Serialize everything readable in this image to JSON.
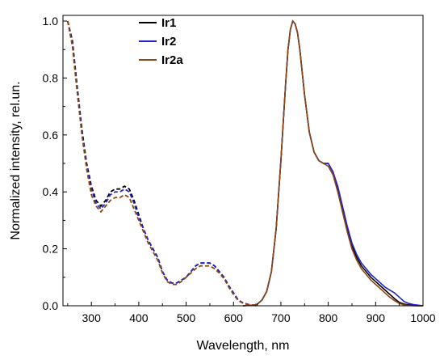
{
  "chart_data": {
    "type": "line",
    "xlabel": "Wavelength, nm",
    "ylabel": "Normalized intensity, rel.un.",
    "xlim": [
      240,
      1000
    ],
    "ylim": [
      0,
      1.02
    ],
    "xticks": [
      300,
      400,
      500,
      600,
      700,
      800,
      900,
      1000
    ],
    "yticks": [
      0.0,
      0.2,
      0.4,
      0.6,
      0.8,
      1.0
    ],
    "xtick_labels": [
      "300",
      "400",
      "500",
      "600",
      "700",
      "800",
      "900",
      "1000"
    ],
    "ytick_labels": [
      "0.0",
      "0.2",
      "0.4",
      "0.6",
      "0.8",
      "1.0"
    ],
    "grid": false,
    "legend_position": "top-left",
    "series": [
      {
        "name": "Ir1",
        "color": "#000000",
        "absorption": {
          "x": [
            250,
            260,
            270,
            280,
            290,
            300,
            310,
            320,
            330,
            340,
            350,
            360,
            370,
            380,
            390,
            400,
            410,
            420,
            430,
            440,
            450,
            460,
            470,
            480,
            490,
            500,
            510,
            520,
            530,
            540,
            550,
            560,
            570,
            580,
            590,
            600,
            610,
            620,
            630,
            640,
            650
          ],
          "y": [
            1.0,
            0.93,
            0.77,
            0.62,
            0.5,
            0.42,
            0.37,
            0.35,
            0.37,
            0.4,
            0.41,
            0.41,
            0.42,
            0.41,
            0.37,
            0.32,
            0.27,
            0.23,
            0.2,
            0.17,
            0.12,
            0.09,
            0.08,
            0.08,
            0.09,
            0.1,
            0.12,
            0.14,
            0.15,
            0.15,
            0.15,
            0.14,
            0.12,
            0.1,
            0.07,
            0.045,
            0.02,
            0.01,
            0.005,
            0.002,
            0.0
          ]
        },
        "emission": {
          "x": [
            620,
            640,
            650,
            660,
            670,
            680,
            690,
            700,
            710,
            715,
            720,
            725,
            730,
            735,
            740,
            745,
            750,
            760,
            770,
            780,
            790,
            800,
            810,
            820,
            830,
            840,
            850,
            860,
            870,
            880,
            890,
            900,
            910,
            920,
            930,
            940,
            950,
            960,
            970,
            980,
            990,
            1000
          ],
          "y": [
            0.0,
            0.002,
            0.005,
            0.02,
            0.05,
            0.12,
            0.27,
            0.51,
            0.78,
            0.9,
            0.97,
            1.0,
            0.99,
            0.96,
            0.9,
            0.82,
            0.74,
            0.61,
            0.54,
            0.51,
            0.5,
            0.5,
            0.47,
            0.41,
            0.34,
            0.27,
            0.21,
            0.17,
            0.14,
            0.12,
            0.1,
            0.085,
            0.07,
            0.055,
            0.04,
            0.025,
            0.012,
            0.006,
            0.003,
            0.001,
            0.0,
            0.0
          ]
        }
      },
      {
        "name": "Ir2",
        "color": "#2222cc",
        "absorption": {
          "x": [
            250,
            260,
            270,
            280,
            290,
            300,
            310,
            320,
            330,
            340,
            350,
            360,
            370,
            380,
            390,
            400,
            410,
            420,
            430,
            440,
            450,
            460,
            470,
            480,
            490,
            500,
            510,
            520,
            530,
            540,
            550,
            560,
            570,
            580,
            590,
            600,
            610,
            620,
            630,
            640,
            650
          ],
          "y": [
            1.0,
            0.92,
            0.76,
            0.61,
            0.49,
            0.41,
            0.36,
            0.34,
            0.36,
            0.39,
            0.4,
            0.4,
            0.41,
            0.4,
            0.36,
            0.31,
            0.27,
            0.23,
            0.2,
            0.17,
            0.12,
            0.09,
            0.08,
            0.08,
            0.09,
            0.1,
            0.12,
            0.14,
            0.15,
            0.15,
            0.15,
            0.14,
            0.12,
            0.1,
            0.07,
            0.045,
            0.02,
            0.01,
            0.005,
            0.002,
            0.0
          ]
        },
        "emission": {
          "x": [
            620,
            640,
            650,
            660,
            670,
            680,
            690,
            700,
            710,
            715,
            720,
            725,
            730,
            735,
            740,
            745,
            750,
            760,
            770,
            780,
            790,
            800,
            810,
            820,
            830,
            840,
            850,
            860,
            870,
            880,
            890,
            900,
            910,
            920,
            930,
            940,
            950,
            960,
            970,
            980,
            990,
            1000
          ],
          "y": [
            0.0,
            0.002,
            0.005,
            0.02,
            0.05,
            0.12,
            0.27,
            0.51,
            0.78,
            0.9,
            0.97,
            1.0,
            0.99,
            0.96,
            0.9,
            0.82,
            0.74,
            0.61,
            0.54,
            0.51,
            0.5,
            0.5,
            0.47,
            0.42,
            0.35,
            0.28,
            0.22,
            0.18,
            0.15,
            0.13,
            0.11,
            0.095,
            0.08,
            0.065,
            0.055,
            0.045,
            0.03,
            0.015,
            0.008,
            0.004,
            0.002,
            0.0
          ]
        }
      },
      {
        "name": "Ir2a",
        "color": "#8b4513",
        "absorption": {
          "x": [
            250,
            260,
            270,
            280,
            290,
            300,
            310,
            320,
            330,
            340,
            350,
            360,
            370,
            380,
            390,
            400,
            410,
            420,
            430,
            440,
            450,
            460,
            470,
            480,
            490,
            500,
            510,
            520,
            530,
            540,
            550,
            560,
            570,
            580,
            590,
            600,
            610,
            620,
            630,
            640,
            650
          ],
          "y": [
            1.0,
            0.91,
            0.75,
            0.6,
            0.48,
            0.39,
            0.35,
            0.33,
            0.35,
            0.37,
            0.38,
            0.38,
            0.39,
            0.38,
            0.34,
            0.3,
            0.26,
            0.22,
            0.19,
            0.16,
            0.115,
            0.085,
            0.075,
            0.075,
            0.085,
            0.1,
            0.115,
            0.13,
            0.14,
            0.14,
            0.14,
            0.13,
            0.115,
            0.095,
            0.065,
            0.04,
            0.018,
            0.009,
            0.004,
            0.002,
            0.0
          ]
        },
        "emission": {
          "x": [
            620,
            640,
            650,
            660,
            670,
            680,
            690,
            700,
            710,
            715,
            720,
            725,
            730,
            735,
            740,
            745,
            750,
            760,
            770,
            780,
            790,
            800,
            810,
            820,
            830,
            840,
            850,
            860,
            870,
            880,
            890,
            900,
            910,
            920,
            930,
            940,
            950,
            960,
            970,
            980,
            990,
            1000
          ],
          "y": [
            0.0,
            0.002,
            0.005,
            0.02,
            0.05,
            0.12,
            0.27,
            0.51,
            0.78,
            0.9,
            0.97,
            1.0,
            0.99,
            0.96,
            0.9,
            0.82,
            0.74,
            0.61,
            0.54,
            0.51,
            0.5,
            0.49,
            0.46,
            0.4,
            0.33,
            0.26,
            0.2,
            0.16,
            0.13,
            0.11,
            0.09,
            0.075,
            0.06,
            0.045,
            0.03,
            0.018,
            0.008,
            0.003,
            0.001,
            0.0,
            0.0,
            0.0
          ]
        }
      }
    ]
  }
}
